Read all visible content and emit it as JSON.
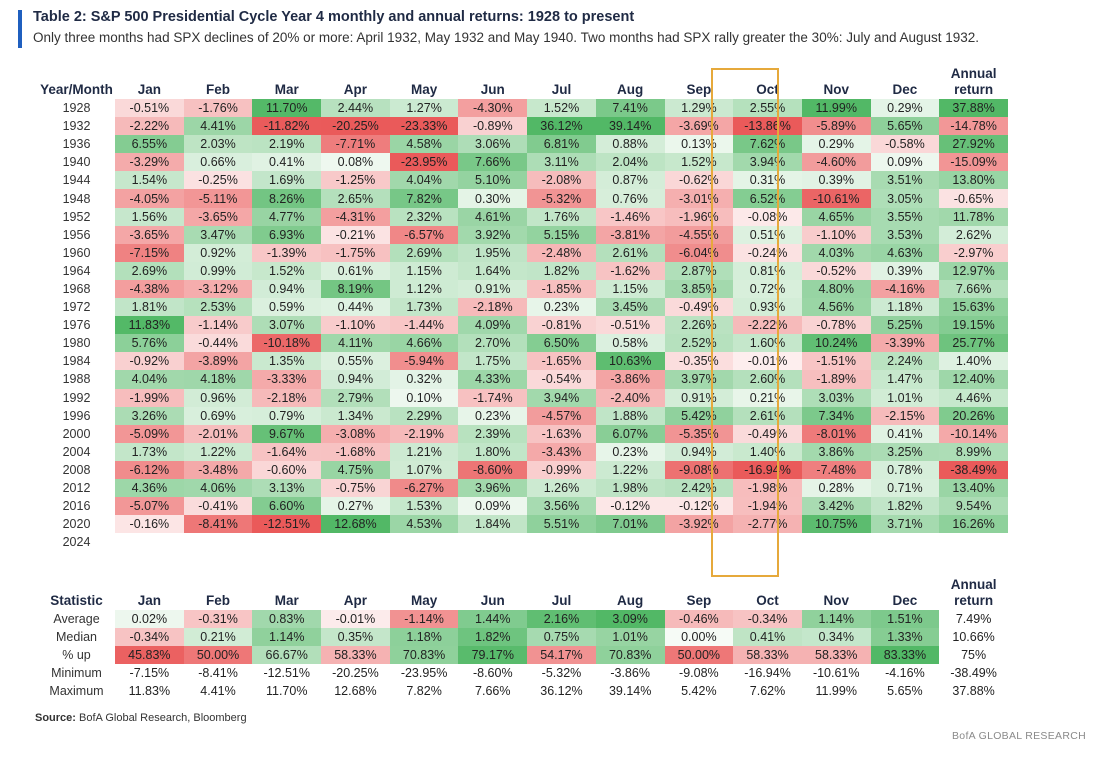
{
  "title": "Table 2: S&P 500 Presidential Cycle Year 4 monthly and annual returns: 1928 to present",
  "subtitle": "Only three months had SPX declines of 20% or more: April 1932, May 1932 and May 1940. Two months had SPX rally greater the 30%: July and August 1932.",
  "main_table": {
    "row_header": "Year/Month",
    "columns": [
      "Jan",
      "Feb",
      "Mar",
      "Apr",
      "May",
      "Jun",
      "Jul",
      "Aug",
      "Sep",
      "Oct",
      "Nov",
      "Dec",
      "Annual return"
    ],
    "rows": [
      {
        "label": "1928",
        "values": [
          "-0.51%",
          "-1.76%",
          "11.70%",
          "2.44%",
          "1.27%",
          "-4.30%",
          "1.52%",
          "7.41%",
          "1.29%",
          "2.55%",
          "11.99%",
          "0.29%",
          "37.88%"
        ]
      },
      {
        "label": "1932",
        "values": [
          "-2.22%",
          "4.41%",
          "-11.82%",
          "-20.25%",
          "-23.33%",
          "-0.89%",
          "36.12%",
          "39.14%",
          "-3.69%",
          "-13.86%",
          "-5.89%",
          "5.65%",
          "-14.78%"
        ]
      },
      {
        "label": "1936",
        "values": [
          "6.55%",
          "2.03%",
          "2.19%",
          "-7.71%",
          "4.58%",
          "3.06%",
          "6.81%",
          "0.88%",
          "0.13%",
          "7.62%",
          "0.29%",
          "-0.58%",
          "27.92%"
        ]
      },
      {
        "label": "1940",
        "values": [
          "-3.29%",
          "0.66%",
          "0.41%",
          "0.08%",
          "-23.95%",
          "7.66%",
          "3.11%",
          "2.04%",
          "1.52%",
          "3.94%",
          "-4.60%",
          "0.09%",
          "-15.09%"
        ]
      },
      {
        "label": "1944",
        "values": [
          "1.54%",
          "-0.25%",
          "1.69%",
          "-1.25%",
          "4.04%",
          "5.10%",
          "-2.08%",
          "0.87%",
          "-0.62%",
          "0.31%",
          "0.39%",
          "3.51%",
          "13.80%"
        ]
      },
      {
        "label": "1948",
        "values": [
          "-4.05%",
          "-5.11%",
          "8.26%",
          "2.65%",
          "7.82%",
          "0.30%",
          "-5.32%",
          "0.76%",
          "-3.01%",
          "6.52%",
          "-10.61%",
          "3.05%",
          "-0.65%"
        ]
      },
      {
        "label": "1952",
        "values": [
          "1.56%",
          "-3.65%",
          "4.77%",
          "-4.31%",
          "2.32%",
          "4.61%",
          "1.76%",
          "-1.46%",
          "-1.96%",
          "-0.08%",
          "4.65%",
          "3.55%",
          "11.78%"
        ]
      },
      {
        "label": "1956",
        "values": [
          "-3.65%",
          "3.47%",
          "6.93%",
          "-0.21%",
          "-6.57%",
          "3.92%",
          "5.15%",
          "-3.81%",
          "-4.55%",
          "0.51%",
          "-1.10%",
          "3.53%",
          "2.62%"
        ]
      },
      {
        "label": "1960",
        "values": [
          "-7.15%",
          "0.92%",
          "-1.39%",
          "-1.75%",
          "2.69%",
          "1.95%",
          "-2.48%",
          "2.61%",
          "-6.04%",
          "-0.24%",
          "4.03%",
          "4.63%",
          "-2.97%"
        ]
      },
      {
        "label": "1964",
        "values": [
          "2.69%",
          "0.99%",
          "1.52%",
          "0.61%",
          "1.15%",
          "1.64%",
          "1.82%",
          "-1.62%",
          "2.87%",
          "0.81%",
          "-0.52%",
          "0.39%",
          "12.97%"
        ]
      },
      {
        "label": "1968",
        "values": [
          "-4.38%",
          "-3.12%",
          "0.94%",
          "8.19%",
          "1.12%",
          "0.91%",
          "-1.85%",
          "1.15%",
          "3.85%",
          "0.72%",
          "4.80%",
          "-4.16%",
          "7.66%"
        ]
      },
      {
        "label": "1972",
        "values": [
          "1.81%",
          "2.53%",
          "0.59%",
          "0.44%",
          "1.73%",
          "-2.18%",
          "0.23%",
          "3.45%",
          "-0.49%",
          "0.93%",
          "4.56%",
          "1.18%",
          "15.63%"
        ]
      },
      {
        "label": "1976",
        "values": [
          "11.83%",
          "-1.14%",
          "3.07%",
          "-1.10%",
          "-1.44%",
          "4.09%",
          "-0.81%",
          "-0.51%",
          "2.26%",
          "-2.22%",
          "-0.78%",
          "5.25%",
          "19.15%"
        ]
      },
      {
        "label": "1980",
        "values": [
          "5.76%",
          "-0.44%",
          "-10.18%",
          "4.11%",
          "4.66%",
          "2.70%",
          "6.50%",
          "0.58%",
          "2.52%",
          "1.60%",
          "10.24%",
          "-3.39%",
          "25.77%"
        ]
      },
      {
        "label": "1984",
        "values": [
          "-0.92%",
          "-3.89%",
          "1.35%",
          "0.55%",
          "-5.94%",
          "1.75%",
          "-1.65%",
          "10.63%",
          "-0.35%",
          "-0.01%",
          "-1.51%",
          "2.24%",
          "1.40%"
        ]
      },
      {
        "label": "1988",
        "values": [
          "4.04%",
          "4.18%",
          "-3.33%",
          "0.94%",
          "0.32%",
          "4.33%",
          "-0.54%",
          "-3.86%",
          "3.97%",
          "2.60%",
          "-1.89%",
          "1.47%",
          "12.40%"
        ]
      },
      {
        "label": "1992",
        "values": [
          "-1.99%",
          "0.96%",
          "-2.18%",
          "2.79%",
          "0.10%",
          "-1.74%",
          "3.94%",
          "-2.40%",
          "0.91%",
          "0.21%",
          "3.03%",
          "1.01%",
          "4.46%"
        ]
      },
      {
        "label": "1996",
        "values": [
          "3.26%",
          "0.69%",
          "0.79%",
          "1.34%",
          "2.29%",
          "0.23%",
          "-4.57%",
          "1.88%",
          "5.42%",
          "2.61%",
          "7.34%",
          "-2.15%",
          "20.26%"
        ]
      },
      {
        "label": "2000",
        "values": [
          "-5.09%",
          "-2.01%",
          "9.67%",
          "-3.08%",
          "-2.19%",
          "2.39%",
          "-1.63%",
          "6.07%",
          "-5.35%",
          "-0.49%",
          "-8.01%",
          "0.41%",
          "-10.14%"
        ]
      },
      {
        "label": "2004",
        "values": [
          "1.73%",
          "1.22%",
          "-1.64%",
          "-1.68%",
          "1.21%",
          "1.80%",
          "-3.43%",
          "0.23%",
          "0.94%",
          "1.40%",
          "3.86%",
          "3.25%",
          "8.99%"
        ]
      },
      {
        "label": "2008",
        "values": [
          "-6.12%",
          "-3.48%",
          "-0.60%",
          "4.75%",
          "1.07%",
          "-8.60%",
          "-0.99%",
          "1.22%",
          "-9.08%",
          "-16.94%",
          "-7.48%",
          "0.78%",
          "-38.49%"
        ]
      },
      {
        "label": "2012",
        "values": [
          "4.36%",
          "4.06%",
          "3.13%",
          "-0.75%",
          "-6.27%",
          "3.96%",
          "1.26%",
          "1.98%",
          "2.42%",
          "-1.98%",
          "0.28%",
          "0.71%",
          "13.40%"
        ]
      },
      {
        "label": "2016",
        "values": [
          "-5.07%",
          "-0.41%",
          "6.60%",
          "0.27%",
          "1.53%",
          "0.09%",
          "3.56%",
          "-0.12%",
          "-0.12%",
          "-1.94%",
          "3.42%",
          "1.82%",
          "9.54%"
        ]
      },
      {
        "label": "2020",
        "values": [
          "-0.16%",
          "-8.41%",
          "-12.51%",
          "12.68%",
          "4.53%",
          "1.84%",
          "5.51%",
          "7.01%",
          "-3.92%",
          "-2.77%",
          "10.75%",
          "3.71%",
          "16.26%"
        ]
      },
      {
        "label": "2024",
        "values": [
          "",
          "",
          "",
          "",
          "",
          "",
          "",
          "",
          "",
          "",
          "",
          "",
          ""
        ]
      }
    ]
  },
  "stats_table": {
    "row_header": "Statistic",
    "columns": [
      "Jan",
      "Feb",
      "Mar",
      "Apr",
      "May",
      "Jun",
      "Jul",
      "Aug",
      "Sep",
      "Oct",
      "Nov",
      "Dec",
      "Annual return"
    ],
    "rows": [
      {
        "label": "Average",
        "values": [
          "0.02%",
          "-0.31%",
          "0.83%",
          "-0.01%",
          "-1.14%",
          "1.44%",
          "2.16%",
          "3.09%",
          "-0.46%",
          "-0.34%",
          "1.14%",
          "1.51%",
          "7.49%"
        ]
      },
      {
        "label": "Median",
        "values": [
          "-0.34%",
          "0.21%",
          "1.14%",
          "0.35%",
          "1.18%",
          "1.82%",
          "0.75%",
          "1.01%",
          "0.00%",
          "0.41%",
          "0.34%",
          "1.33%",
          "10.66%"
        ]
      },
      {
        "label": "% up",
        "values": [
          "45.83%",
          "50.00%",
          "66.67%",
          "58.33%",
          "70.83%",
          "79.17%",
          "54.17%",
          "70.83%",
          "50.00%",
          "58.33%",
          "58.33%",
          "83.33%",
          "75%"
        ]
      },
      {
        "label": "Minimum",
        "values": [
          "-7.15%",
          "-8.41%",
          "-12.51%",
          "-20.25%",
          "-23.95%",
          "-8.60%",
          "-5.32%",
          "-3.86%",
          "-9.08%",
          "-16.94%",
          "-10.61%",
          "-4.16%",
          "-38.49%"
        ]
      },
      {
        "label": "Maximum",
        "values": [
          "11.83%",
          "4.41%",
          "11.70%",
          "12.68%",
          "7.82%",
          "7.66%",
          "36.12%",
          "39.14%",
          "5.42%",
          "7.62%",
          "11.99%",
          "5.65%",
          "37.88%"
        ]
      }
    ]
  },
  "source": {
    "label": "Source:",
    "text": "BofA Global Research, Bloomberg"
  },
  "footer": "BofA GLOBAL RESEARCH",
  "colors": {
    "accent_bar": "#1f5fbf",
    "highlight_border": "#e6a93b",
    "positive_strong": "#52b866",
    "negative_strong": "#ea5a5a"
  }
}
